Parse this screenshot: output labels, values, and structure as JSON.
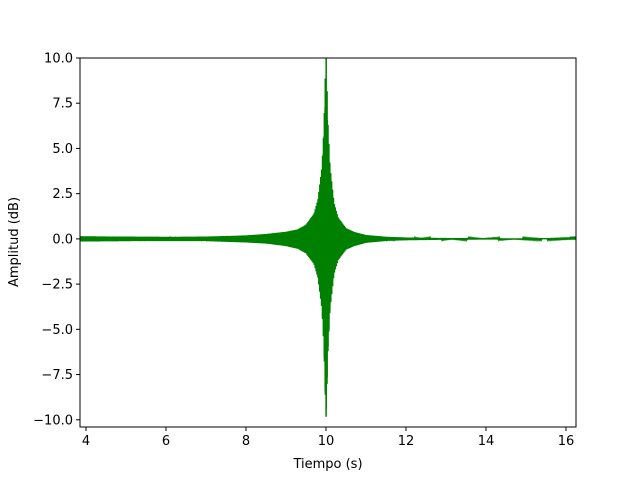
{
  "chart_data": {
    "type": "line",
    "title": "",
    "xlabel": "Tiempo (s)",
    "ylabel": "Amplitud (dB)",
    "xlim": [
      3.85,
      16.25
    ],
    "ylim": [
      -10.4,
      10.0
    ],
    "xticks": [
      4,
      6,
      8,
      10,
      12,
      14,
      16
    ],
    "xtick_labels": [
      "4",
      "6",
      "8",
      "10",
      "12",
      "14",
      "16"
    ],
    "yticks": [
      -10.0,
      -7.5,
      -5.0,
      -2.5,
      0.0,
      2.5,
      5.0,
      7.5,
      10.0
    ],
    "ytick_labels": [
      "−10.0",
      "−7.5",
      "−5.0",
      "−2.5",
      "0.0",
      "2.5",
      "5.0",
      "7.5",
      "10.0"
    ],
    "grid": false,
    "legend": "none",
    "series": [
      {
        "color": "#008000",
        "description_of_shape": "oscillating signal with amplitude envelope peaking sharply at t=10 s",
        "envelope": {
          "t": [
            3.85,
            5.0,
            6.0,
            7.0,
            8.0,
            8.5,
            9.0,
            9.3,
            9.5,
            9.7,
            9.8,
            9.9,
            9.95,
            10.0,
            10.05,
            10.1,
            10.2,
            10.3,
            10.5,
            10.7,
            11.0,
            11.5,
            12.0,
            13.0,
            14.0,
            15.0,
            16.25
          ],
          "amplitude": [
            0.15,
            0.13,
            0.12,
            0.13,
            0.2,
            0.27,
            0.4,
            0.55,
            0.8,
            1.4,
            2.2,
            4.0,
            6.2,
            10.4,
            6.3,
            4.0,
            2.0,
            1.2,
            0.6,
            0.4,
            0.22,
            0.12,
            0.08,
            0.05,
            0.04,
            0.03,
            0.02
          ]
        }
      }
    ]
  }
}
